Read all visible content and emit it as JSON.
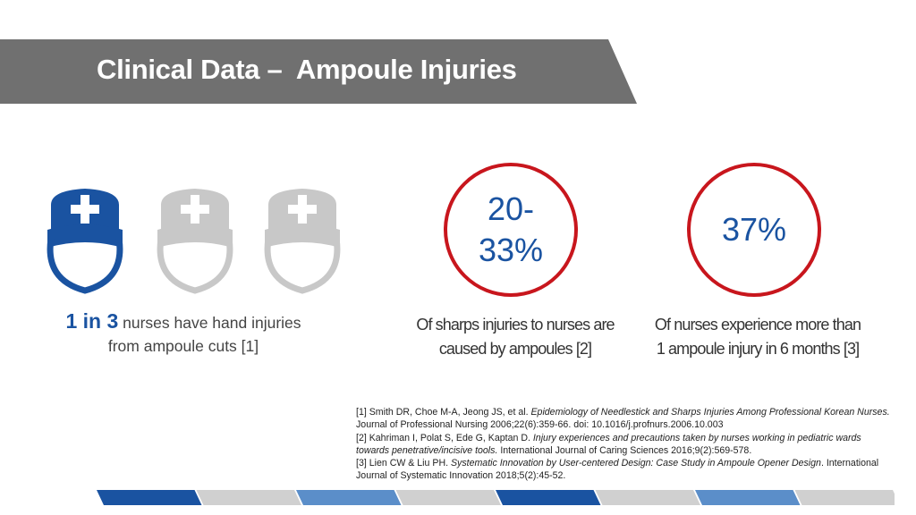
{
  "title": "Clinical Data –  Ampoule Injuries",
  "colors": {
    "accent_blue": "#1a53a1",
    "accent_red": "#c8161d",
    "icon_gray": "#c8c8c8",
    "banner_gray": "#707070"
  },
  "nurses": {
    "icons": [
      "nurse-icon-highlighted",
      "nurse-icon",
      "nurse-icon"
    ],
    "stat_strong": "1 in 3",
    "stat_line1_rest": " nurses have hand injuries",
    "stat_line2": "from ampoule cuts [1]"
  },
  "stat_sharps": {
    "value_line1": "20-",
    "value_line2": "33%",
    "caption_line1": "Of sharps injuries to nurses are",
    "caption_line2": "caused by ampoules [2]"
  },
  "stat_repeat": {
    "value": "37%",
    "caption_line1": "Of nurses experience more than",
    "caption_line2": "1 ampoule injury in 6 months [3]"
  },
  "references": [
    {
      "prefix": "[1] Smith DR, Choe M-A, Jeong JS, et al. ",
      "title": "Epidemiology of Needlestick and Sharps Injuries Among Professional Korean Nurses.",
      "suffix": " Journal of Professional Nursing 2006;22(6):359-66. doi: 10.1016/j.profnurs.2006.10.003"
    },
    {
      "prefix": "[2] Kahriman I, Polat S, Ede G, Kaptan D. ",
      "title": "Injury experiences and precautions taken by nurses working in pediatric wards towards penetrative/incisive tools.",
      "suffix": " International Journal of Caring Sciences 2016;9(2):569-578."
    },
    {
      "prefix": "[3] Lien CW & Liu PH. ",
      "title": "Systematic Innovation by User-centered Design: Case Study in Ampoule Opener Design",
      "suffix": ". International Journal of Systematic Innovation 2018;5(2):45-52."
    }
  ],
  "footer_segments": [
    "#1a53a1",
    "#d0d0d0",
    "#5b8ec9",
    "#d0d0d0",
    "#1a53a1",
    "#d0d0d0",
    "#5b8ec9",
    "#d0d0d0"
  ]
}
